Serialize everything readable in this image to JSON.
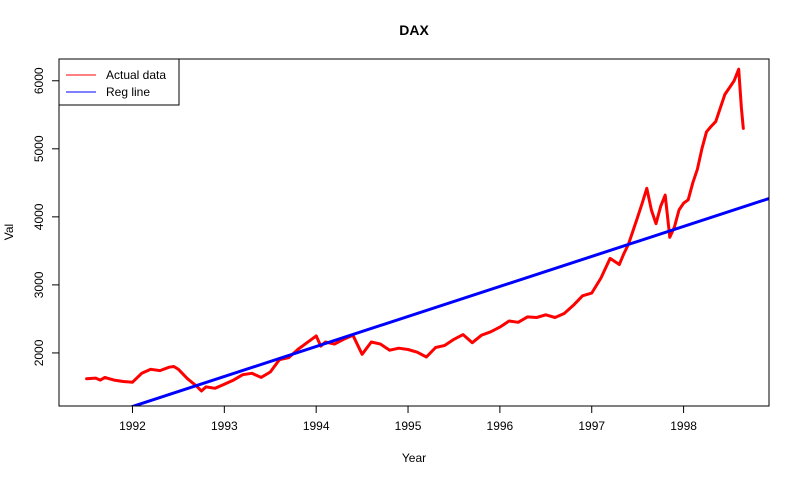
{
  "chart_data": {
    "type": "line",
    "title": "DAX",
    "xlabel": "Year",
    "ylabel": "Val",
    "xlim": [
      1991.2,
      1998.93
    ],
    "ylim": [
      1220,
      6320
    ],
    "x_ticks": [
      1992,
      1993,
      1994,
      1995,
      1996,
      1997,
      1998
    ],
    "y_ticks": [
      2000,
      3000,
      4000,
      5000,
      6000
    ],
    "grid": false,
    "legend_position": "top-left",
    "series": [
      {
        "name": "Actual data",
        "color": "#ff0000",
        "x": [
          1991.5,
          1991.6,
          1991.65,
          1991.7,
          1991.75,
          1991.8,
          1991.9,
          1992.0,
          1992.1,
          1992.2,
          1992.3,
          1992.4,
          1992.45,
          1992.5,
          1992.6,
          1992.7,
          1992.75,
          1992.8,
          1992.9,
          1993.0,
          1993.1,
          1993.2,
          1993.3,
          1993.4,
          1993.5,
          1993.6,
          1993.7,
          1993.8,
          1993.9,
          1994.0,
          1994.05,
          1994.1,
          1994.2,
          1994.3,
          1994.4,
          1994.5,
          1994.6,
          1994.7,
          1994.8,
          1994.9,
          1995.0,
          1995.1,
          1995.2,
          1995.3,
          1995.4,
          1995.5,
          1995.6,
          1995.7,
          1995.8,
          1995.9,
          1996.0,
          1996.1,
          1996.2,
          1996.3,
          1996.4,
          1996.5,
          1996.6,
          1996.7,
          1996.8,
          1996.9,
          1997.0,
          1997.1,
          1997.2,
          1997.3,
          1997.35,
          1997.4,
          1997.45,
          1997.5,
          1997.55,
          1997.6,
          1997.65,
          1997.7,
          1997.75,
          1997.8,
          1997.85,
          1997.9,
          1997.95,
          1998.0,
          1998.05,
          1998.1,
          1998.15,
          1998.2,
          1998.25,
          1998.3,
          1998.35,
          1998.4,
          1998.45,
          1998.5,
          1998.55,
          1998.6,
          1998.63,
          1998.65
        ],
        "values": [
          1620,
          1630,
          1600,
          1640,
          1620,
          1600,
          1580,
          1570,
          1700,
          1760,
          1740,
          1790,
          1800,
          1760,
          1620,
          1510,
          1440,
          1500,
          1480,
          1540,
          1600,
          1680,
          1700,
          1640,
          1720,
          1900,
          1930,
          2050,
          2150,
          2250,
          2100,
          2160,
          2130,
          2200,
          2260,
          1980,
          2160,
          2130,
          2040,
          2070,
          2050,
          2010,
          1940,
          2080,
          2110,
          2200,
          2270,
          2150,
          2260,
          2310,
          2380,
          2470,
          2450,
          2530,
          2520,
          2560,
          2520,
          2580,
          2700,
          2840,
          2880,
          3100,
          3390,
          3300,
          3460,
          3600,
          3800,
          4000,
          4200,
          4420,
          4100,
          3900,
          4150,
          4320,
          3700,
          3850,
          4100,
          4200,
          4250,
          4500,
          4700,
          5000,
          5250,
          5330,
          5400,
          5600,
          5800,
          5900,
          6000,
          6170,
          5600,
          5300
        ]
      },
      {
        "name": "Reg line",
        "color": "#0000ff",
        "x": [
          1991.2,
          1998.93
        ],
        "values": [
          860,
          4270
        ]
      }
    ]
  }
}
